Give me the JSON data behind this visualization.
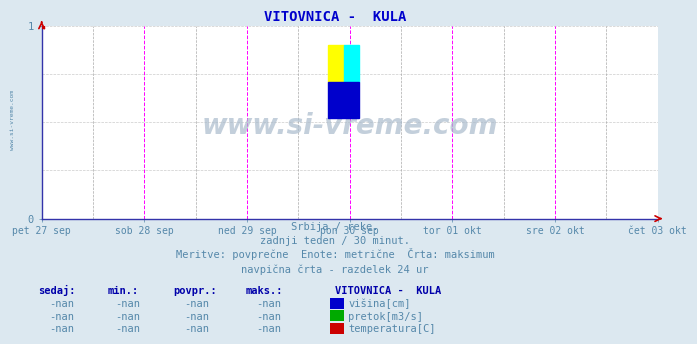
{
  "title": "VITOVNICA -  KULA",
  "title_color": "#0000cc",
  "title_fontsize": 10,
  "bg_color": "#dce8f0",
  "plot_bg_color": "#ffffff",
  "axis_color": "#cc0000",
  "text_color": "#5588aa",
  "legend_header_color": "#0000aa",
  "xlim": [
    0,
    1
  ],
  "ylim": [
    0,
    1
  ],
  "x_labels": [
    "pet 27 sep",
    "sob 28 sep",
    "ned 29 sep",
    "pon 30 sep",
    "tor 01 okt",
    "sre 02 okt",
    "čet 03 okt"
  ],
  "x_positions": [
    0.0,
    0.1667,
    0.3333,
    0.5,
    0.6667,
    0.8333,
    1.0
  ],
  "vertical_lines_magenta": [
    0.1667,
    0.3333,
    0.5,
    0.6667,
    0.8333,
    1.0
  ],
  "vertical_lines_gray_dashed": [
    0.0833,
    0.25,
    0.4167,
    0.5833,
    0.75,
    0.9167
  ],
  "horizontal_lines": [
    0.25,
    0.5,
    0.75,
    1.0
  ],
  "watermark": "www.si-vreme.com",
  "watermark_color": "#aabbcc",
  "subtitle1": "Srbija / reke.",
  "subtitle2": "zadnji teden / 30 minut.",
  "subtitle3": "Meritve: povprečne  Enote: metrične  Črta: maksimum",
  "subtitle4": "navpična črta - razdelek 24 ur",
  "legend_title": "VITOVNICA -  KULA",
  "legend_headers": [
    "sedaj:",
    "min.:",
    "povpr.:",
    "maks.:"
  ],
  "legend_rows": [
    [
      "-nan",
      "-nan",
      "-nan",
      "-nan",
      "#0000cc",
      "višina[cm]"
    ],
    [
      "-nan",
      "-nan",
      "-nan",
      "-nan",
      "#00aa00",
      "pretok[m3/s]"
    ],
    [
      "-nan",
      "-nan",
      "-nan",
      "-nan",
      "#cc0000",
      "temperatura[C]"
    ]
  ],
  "side_text": "www.si-vreme.com",
  "side_text_color": "#5588aa"
}
